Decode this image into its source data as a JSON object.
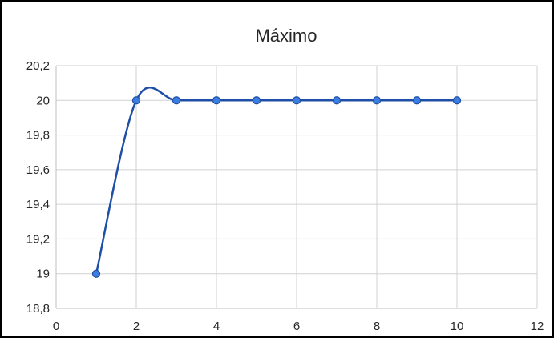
{
  "chart_data": {
    "type": "scatter",
    "title": "Máximo",
    "xlabel": "",
    "ylabel": "",
    "xlim": [
      0,
      12
    ],
    "ylim": [
      18.8,
      20.2
    ],
    "x_ticks": [
      "0",
      "2",
      "4",
      "6",
      "8",
      "10",
      "12"
    ],
    "y_ticks": [
      "20,2",
      "20",
      "19,8",
      "19,6",
      "19,4",
      "19,2",
      "19",
      "18,8"
    ],
    "grid": true,
    "smooth_lines": true,
    "legend": "none",
    "series": [
      {
        "color": "#1f4ea6",
        "marker_color": "#3c7ee0",
        "x": [
          1,
          2,
          3,
          4,
          5,
          6,
          7,
          8,
          9,
          10
        ],
        "y": [
          19,
          20,
          20,
          20,
          20,
          20,
          20,
          20,
          20,
          20
        ]
      }
    ]
  }
}
